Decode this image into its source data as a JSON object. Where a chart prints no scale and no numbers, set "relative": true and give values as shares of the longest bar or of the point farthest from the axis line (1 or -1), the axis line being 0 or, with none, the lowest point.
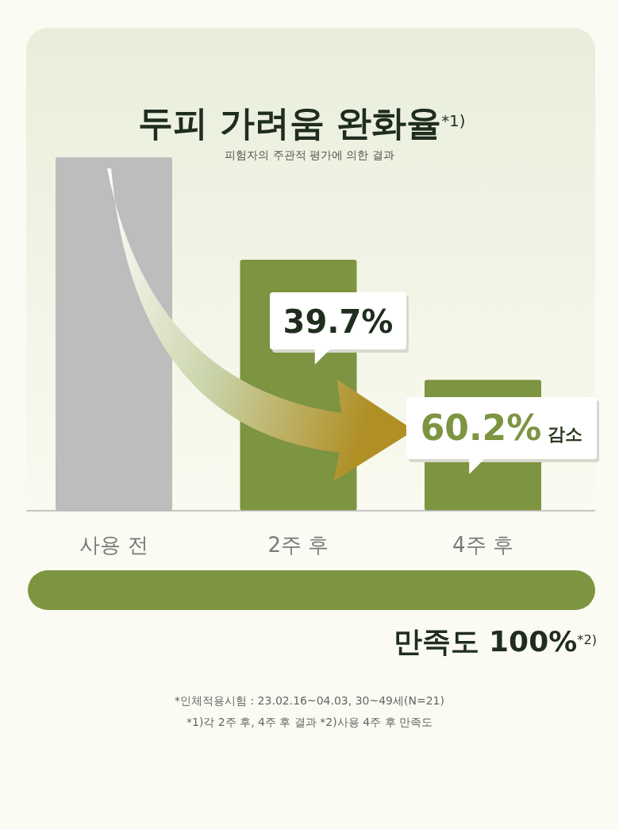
{
  "chart_data": {
    "type": "bar",
    "title": "두피 가려움 완화율$^{*1)}$",
    "subtitle": "피험자의 주관적 평가에 의한 결과",
    "relative": true,
    "categories": [
      "사용 전",
      "2주 후",
      "4주 후"
    ],
    "values": [
      1,
      0.71,
      0.37
    ],
    "colors": [
      "#bdbdbd",
      "#7d9441",
      "#7d9441"
    ],
    "annotations": [
      "39.7%",
      "60.2% 감소",
      "만족도 100%$^{*2)}$",
      "*인체적용시험 : 23.02.16~04.03, 30~49세(N=21)",
      "*1)각 2주 후, 4주 후 결과 *2)사용 4주 후 만족도"
    ]
  }
}
